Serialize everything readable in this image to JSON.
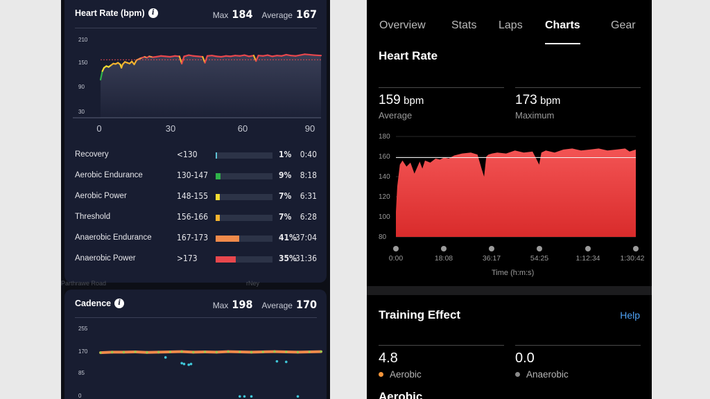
{
  "left_app": {
    "heart_rate_card": {
      "title": "Heart Rate (bpm)",
      "max_label": "Max",
      "max_value": "184",
      "avg_label": "Average",
      "avg_value": "167",
      "y_ticks": [
        "210",
        "150",
        "90",
        "30"
      ],
      "x_ticks": [
        "0",
        "30",
        "60",
        "90"
      ],
      "zones": [
        {
          "name": "Recovery",
          "range": "<130",
          "percent": "1%",
          "time": "0:40",
          "fill": 0.01,
          "color": "#5ec2d6"
        },
        {
          "name": "Aerobic Endurance",
          "range": "130-147",
          "percent": "9%",
          "time": "8:18",
          "fill": 0.09,
          "color": "#2fb24a"
        },
        {
          "name": "Aerobic Power",
          "range": "148-155",
          "percent": "7%",
          "time": "6:31",
          "fill": 0.07,
          "color": "#f2dc32"
        },
        {
          "name": "Threshold",
          "range": "156-166",
          "percent": "7%",
          "time": "6:28",
          "fill": 0.07,
          "color": "#f4b32f"
        },
        {
          "name": "Anaerobic Endurance",
          "range": "167-173",
          "percent": "41%",
          "time": "37:04",
          "fill": 0.41,
          "color": "#f08a4b"
        },
        {
          "name": "Anaerobic Power",
          "range": ">173",
          "percent": "35%",
          "time": "31:36",
          "fill": 0.35,
          "color": "#e8474d"
        }
      ]
    },
    "cadence_card": {
      "title": "Cadence",
      "max_label": "Max",
      "max_value": "198",
      "avg_label": "Average",
      "avg_value": "170",
      "y_ticks": [
        "255",
        "170",
        "85",
        "0"
      ]
    },
    "map_fragments": [
      "Parthrawe Road",
      "rNey"
    ]
  },
  "right_app": {
    "tabs": [
      {
        "label": "Overview",
        "active": false
      },
      {
        "label": "Stats",
        "active": false
      },
      {
        "label": "Laps",
        "active": false
      },
      {
        "label": "Charts",
        "active": true
      },
      {
        "label": "Gear",
        "active": false
      }
    ],
    "heart_rate": {
      "title": "Heart Rate",
      "average": {
        "value": "159",
        "unit": "bpm",
        "label": "Average"
      },
      "maximum": {
        "value": "173",
        "unit": "bpm",
        "label": "Maximum"
      }
    },
    "training_effect": {
      "title": "Training Effect",
      "help_label": "Help",
      "aerobic": {
        "value": "4.8",
        "label": "Aerobic",
        "color": "#f5953a"
      },
      "anaerobic": {
        "value": "0.0",
        "label": "Anaerobic",
        "color": "#8a8a8a"
      },
      "next_heading": "Aerobic"
    }
  },
  "chart_data": [
    {
      "type": "line",
      "title": "Heart Rate (bpm)",
      "xlabel": "",
      "ylabel": "",
      "x_ticks": [
        0,
        30,
        60,
        90
      ],
      "y_ticks": [
        30,
        90,
        150,
        210
      ],
      "xlim": [
        0,
        95
      ],
      "ylim": [
        30,
        210
      ],
      "threshold_line": 167,
      "series": [
        {
          "x": [
            0,
            0.8,
            1.5,
            2.5,
            3.5,
            4.5,
            5.5,
            6.5,
            7.5,
            8.5,
            9,
            9.5,
            10.5,
            11.5,
            12.5,
            13.5,
            14.5,
            15.5,
            17,
            18,
            19,
            20,
            21,
            22.5,
            24,
            26,
            28,
            30,
            32,
            34,
            35,
            36,
            38,
            40,
            42,
            44,
            45,
            46,
            48,
            50,
            52,
            54,
            56,
            58,
            60,
            62,
            64,
            66,
            67,
            68,
            70,
            72,
            74,
            76,
            78,
            80,
            82,
            84,
            86,
            88,
            90,
            92,
            95
          ],
          "y": [
            120,
            140,
            148,
            152,
            150,
            154,
            158,
            157,
            160,
            156,
            148,
            156,
            162,
            160,
            158,
            163,
            156,
            166,
            170,
            172,
            174,
            172,
            175,
            173,
            174,
            176,
            175,
            174,
            176,
            175,
            158,
            175,
            178,
            176,
            175,
            174,
            160,
            176,
            177,
            175,
            174,
            176,
            175,
            177,
            176,
            178,
            175,
            177,
            164,
            177,
            176,
            178,
            175,
            177,
            176,
            179,
            177,
            176,
            178,
            180,
            179,
            178,
            177
          ]
        }
      ]
    },
    {
      "type": "scatter",
      "title": "Cadence",
      "xlabel": "",
      "ylabel": "",
      "y_ticks": [
        0,
        85,
        170,
        255
      ],
      "ylim": [
        0,
        255
      ],
      "series": [
        {
          "name": "main",
          "x": [
            0,
            5,
            10,
            15,
            20,
            25,
            30,
            35,
            40,
            45,
            50,
            55,
            60,
            65,
            70,
            75,
            80,
            85,
            90,
            95
          ],
          "y": [
            168,
            170,
            170,
            171,
            169,
            170,
            171,
            172,
            170,
            171,
            170,
            172,
            171,
            170,
            171,
            172,
            171,
            170,
            171,
            172
          ]
        },
        {
          "name": "low",
          "x": [
            28,
            35,
            36,
            38,
            39,
            76,
            80,
            60,
            62,
            65,
            85
          ],
          "y": [
            150,
            128,
            125,
            122,
            125,
            135,
            133,
            2,
            2,
            2,
            2
          ]
        }
      ]
    },
    {
      "type": "area",
      "title": "Heart Rate",
      "xlabel": "Time (h:m:s)",
      "ylabel": "",
      "x_ticks": [
        "0:00",
        "18:08",
        "36:17",
        "54:25",
        "1:12:34",
        "1:30:42"
      ],
      "y_ticks": [
        80,
        100,
        120,
        140,
        160,
        180
      ],
      "xlim": [
        0,
        5442
      ],
      "ylim": [
        80,
        180
      ],
      "reference_line": 159,
      "series": [
        {
          "x": [
            0,
            30,
            90,
            150,
            240,
            330,
            420,
            540,
            600,
            660,
            780,
            900,
            1000,
            1090,
            1200,
            1320,
            1500,
            1700,
            1850,
            1950,
            2000,
            2050,
            2100,
            2180,
            2300,
            2500,
            2700,
            2900,
            3100,
            3250,
            3300,
            3400,
            3600,
            3800,
            4000,
            4200,
            4400,
            4600,
            4800,
            5000,
            5200,
            5300,
            5442
          ],
          "y": [
            105,
            130,
            152,
            156,
            150,
            154,
            143,
            155,
            148,
            156,
            154,
            158,
            157,
            159,
            158,
            161,
            163,
            164,
            162,
            147,
            140,
            160,
            162,
            163,
            164,
            163,
            166,
            164,
            165,
            152,
            164,
            166,
            164,
            167,
            168,
            166,
            167,
            168,
            166,
            167,
            168,
            165,
            167
          ]
        }
      ]
    }
  ]
}
